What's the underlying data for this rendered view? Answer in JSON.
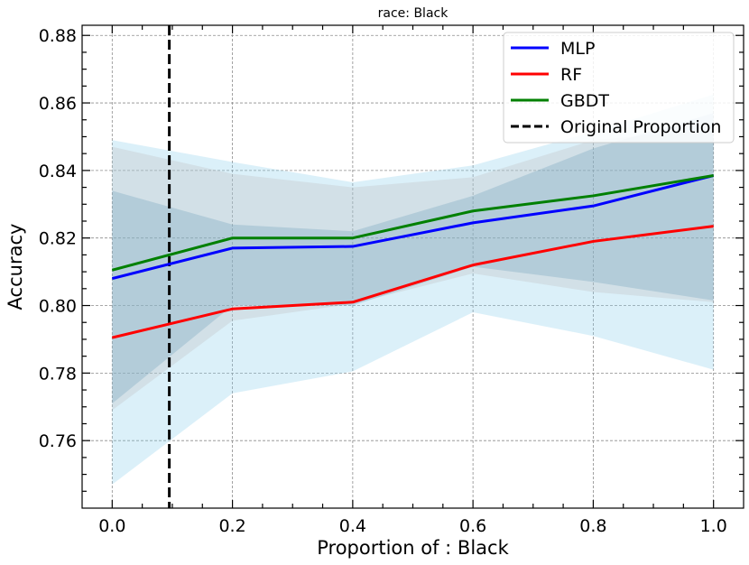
{
  "chart_data": {
    "type": "line",
    "title": "race: Black",
    "xlabel": "Proportion of : Black",
    "ylabel": "Accuracy",
    "xlim": [
      -0.05,
      1.05
    ],
    "ylim": [
      0.74,
      0.883
    ],
    "x_ticks": [
      "0.0",
      "0.2",
      "0.4",
      "0.6",
      "0.8",
      "1.0"
    ],
    "y_ticks": [
      "0.76",
      "0.78",
      "0.80",
      "0.82",
      "0.84",
      "0.86",
      "0.88"
    ],
    "grid": true,
    "legend_position": "top-right",
    "x": [
      0.0,
      0.2,
      0.4,
      0.6,
      0.8,
      1.0
    ],
    "series": [
      {
        "name": "MLP",
        "color": "#0000ff",
        "band_color": "#87ceeb",
        "values": [
          0.808,
          0.817,
          0.8175,
          0.8245,
          0.8295,
          0.8385
        ],
        "lower": [
          0.747,
          0.774,
          0.7805,
          0.798,
          0.791,
          0.781
        ],
        "upper": [
          0.849,
          0.8425,
          0.8365,
          0.8415,
          0.8515,
          0.8625
        ]
      },
      {
        "name": "RF",
        "color": "#ff0000",
        "band_color": "#bdbdbd",
        "values": [
          0.7905,
          0.799,
          0.801,
          0.812,
          0.819,
          0.8235
        ],
        "lower": [
          0.769,
          0.7955,
          0.8005,
          0.8095,
          0.804,
          0.801
        ],
        "upper": [
          0.847,
          0.839,
          0.835,
          0.838,
          0.849,
          0.852
        ]
      },
      {
        "name": "GBDT",
        "color": "#008000",
        "band_color": "#6d9eb8",
        "values": [
          0.8105,
          0.82,
          0.82,
          0.828,
          0.8325,
          0.8385
        ],
        "lower": [
          0.771,
          0.8,
          0.8,
          0.8115,
          0.807,
          0.8015
        ],
        "upper": [
          0.834,
          0.824,
          0.822,
          0.8325,
          0.8465,
          0.857
        ]
      }
    ],
    "reference_line": {
      "name": "Original Proportion",
      "x": 0.095,
      "color": "#000000",
      "style": "dashed"
    }
  }
}
